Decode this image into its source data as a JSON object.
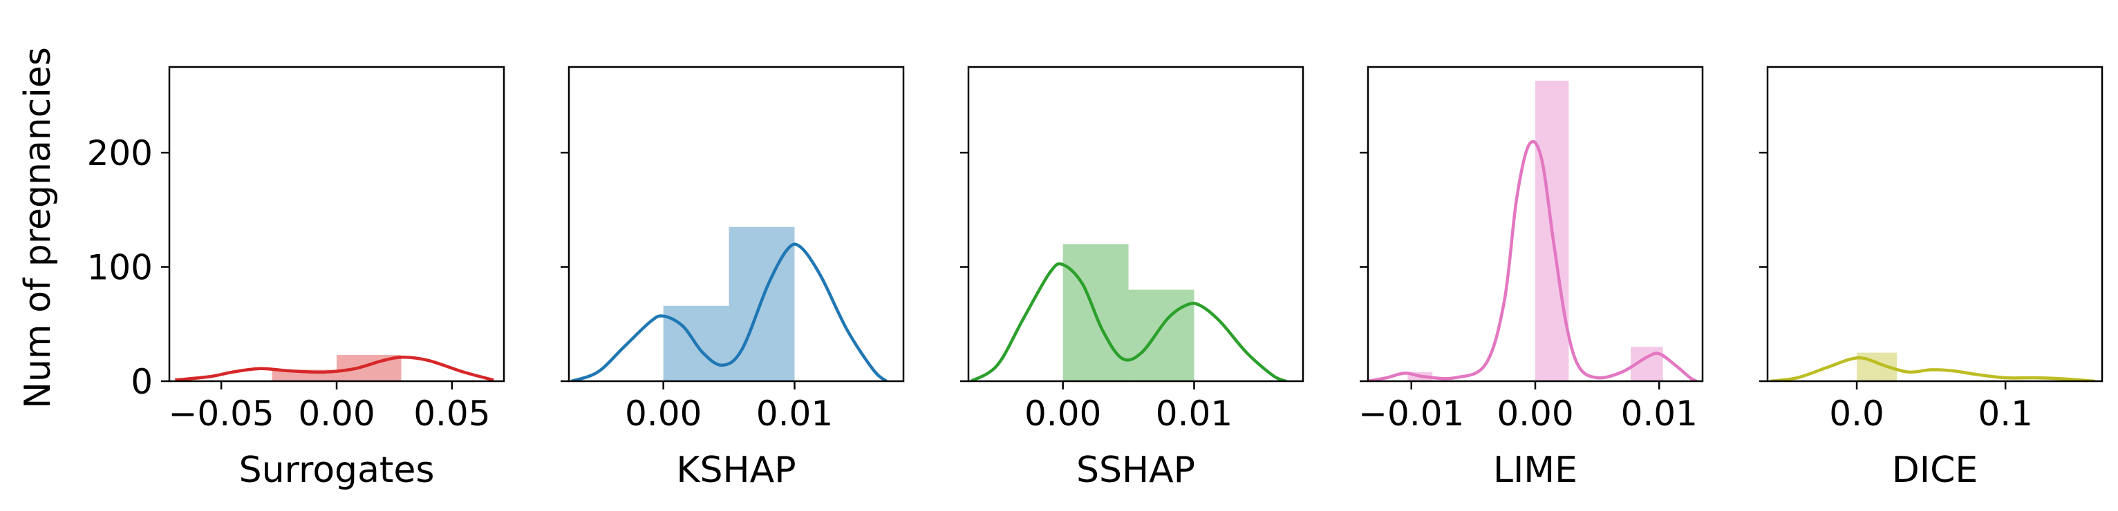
{
  "ylabel": "Num of pregnancies",
  "y_ticks": [
    0,
    100,
    200
  ],
  "y_tick_labels": [
    "0",
    "100",
    "200"
  ],
  "ylim": [
    0,
    275
  ],
  "chart_data": [
    {
      "type": "bar",
      "xlabel": "Surrogates",
      "color": "#d62728",
      "xlim": [
        -0.0725,
        0.0725
      ],
      "x_ticks": [
        -0.05,
        0.0,
        0.05
      ],
      "x_tick_labels": [
        "−0.05",
        "0.00",
        "0.05"
      ],
      "bins": [
        {
          "x0": -0.028,
          "x1": 0.0,
          "count": 10
        },
        {
          "x0": 0.0,
          "x1": 0.028,
          "count": 23
        }
      ],
      "kde": [
        {
          "x": -0.07,
          "y": 1
        },
        {
          "x": -0.055,
          "y": 4
        },
        {
          "x": -0.045,
          "y": 8
        },
        {
          "x": -0.033,
          "y": 11
        },
        {
          "x": -0.02,
          "y": 9
        },
        {
          "x": -0.005,
          "y": 8
        },
        {
          "x": 0.008,
          "y": 11
        },
        {
          "x": 0.02,
          "y": 18
        },
        {
          "x": 0.029,
          "y": 21
        },
        {
          "x": 0.04,
          "y": 18
        },
        {
          "x": 0.055,
          "y": 8
        },
        {
          "x": 0.068,
          "y": 1
        }
      ]
    },
    {
      "type": "bar",
      "xlabel": "KSHAP",
      "color": "#1f77b4",
      "xlim": [
        -0.0072,
        0.0183
      ],
      "x_ticks": [
        0.0,
        0.01
      ],
      "x_tick_labels": [
        "0.00",
        "0.01"
      ],
      "bins": [
        {
          "x0": 0.0,
          "x1": 0.005,
          "count": 66
        },
        {
          "x0": 0.005,
          "x1": 0.01,
          "count": 135
        }
      ],
      "kde": [
        {
          "x": -0.007,
          "y": 0
        },
        {
          "x": -0.005,
          "y": 8
        },
        {
          "x": -0.003,
          "y": 30
        },
        {
          "x": -0.001,
          "y": 52
        },
        {
          "x": 0.0,
          "y": 57
        },
        {
          "x": 0.0015,
          "y": 48
        },
        {
          "x": 0.003,
          "y": 25
        },
        {
          "x": 0.0045,
          "y": 14
        },
        {
          "x": 0.006,
          "y": 28
        },
        {
          "x": 0.008,
          "y": 85
        },
        {
          "x": 0.0095,
          "y": 116
        },
        {
          "x": 0.0105,
          "y": 117
        },
        {
          "x": 0.012,
          "y": 92
        },
        {
          "x": 0.014,
          "y": 45
        },
        {
          "x": 0.016,
          "y": 10
        },
        {
          "x": 0.017,
          "y": 0
        }
      ]
    },
    {
      "type": "bar",
      "xlabel": "SSHAP",
      "color": "#2ca02c",
      "xlim": [
        -0.0072,
        0.0183
      ],
      "x_ticks": [
        0.0,
        0.01
      ],
      "x_tick_labels": [
        "0.00",
        "0.01"
      ],
      "bins": [
        {
          "x0": 0.0,
          "x1": 0.005,
          "count": 120
        },
        {
          "x0": 0.005,
          "x1": 0.01,
          "count": 80
        }
      ],
      "kde": [
        {
          "x": -0.007,
          "y": 0
        },
        {
          "x": -0.005,
          "y": 14
        },
        {
          "x": -0.003,
          "y": 55
        },
        {
          "x": -0.001,
          "y": 95
        },
        {
          "x": 0.0,
          "y": 102
        },
        {
          "x": 0.0015,
          "y": 85
        },
        {
          "x": 0.003,
          "y": 45
        },
        {
          "x": 0.0045,
          "y": 20
        },
        {
          "x": 0.006,
          "y": 25
        },
        {
          "x": 0.008,
          "y": 55
        },
        {
          "x": 0.0095,
          "y": 67
        },
        {
          "x": 0.0105,
          "y": 66
        },
        {
          "x": 0.012,
          "y": 52
        },
        {
          "x": 0.014,
          "y": 25
        },
        {
          "x": 0.016,
          "y": 5
        },
        {
          "x": 0.017,
          "y": 0
        }
      ]
    },
    {
      "type": "bar",
      "xlabel": "LIME",
      "color": "#e377c2",
      "xlim": [
        -0.0135,
        0.0135
      ],
      "x_ticks": [
        -0.01,
        0.0,
        0.01
      ],
      "x_tick_labels": [
        "−0.01",
        "0.00",
        "0.01"
      ],
      "bins": [
        {
          "x0": -0.0103,
          "x1": -0.0083,
          "count": 8
        },
        {
          "x0": 0.0,
          "x1": 0.0027,
          "count": 263
        },
        {
          "x0": 0.0077,
          "x1": 0.0103,
          "count": 30
        }
      ],
      "kde": [
        {
          "x": -0.0135,
          "y": 0
        },
        {
          "x": -0.012,
          "y": 3
        },
        {
          "x": -0.0105,
          "y": 7
        },
        {
          "x": -0.009,
          "y": 4
        },
        {
          "x": -0.0065,
          "y": 3
        },
        {
          "x": -0.004,
          "y": 15
        },
        {
          "x": -0.0025,
          "y": 70
        },
        {
          "x": -0.0015,
          "y": 160
        },
        {
          "x": -0.0005,
          "y": 207
        },
        {
          "x": 0.0005,
          "y": 195
        },
        {
          "x": 0.0015,
          "y": 120
        },
        {
          "x": 0.0025,
          "y": 50
        },
        {
          "x": 0.0035,
          "y": 13
        },
        {
          "x": 0.005,
          "y": 3
        },
        {
          "x": 0.007,
          "y": 8
        },
        {
          "x": 0.009,
          "y": 21
        },
        {
          "x": 0.01,
          "y": 24
        },
        {
          "x": 0.0113,
          "y": 14
        },
        {
          "x": 0.0125,
          "y": 3
        },
        {
          "x": 0.013,
          "y": 0
        }
      ]
    },
    {
      "type": "bar",
      "xlabel": "DICE",
      "color": "#bcbd22",
      "xlim": [
        -0.06,
        0.165
      ],
      "x_ticks": [
        0.0,
        0.1
      ],
      "x_tick_labels": [
        "0.0",
        "0.1"
      ],
      "bins": [
        {
          "x0": 0.0,
          "x1": 0.027,
          "count": 25
        }
      ],
      "kde": [
        {
          "x": -0.058,
          "y": 0
        },
        {
          "x": -0.04,
          "y": 3
        },
        {
          "x": -0.02,
          "y": 12
        },
        {
          "x": -0.005,
          "y": 19
        },
        {
          "x": 0.005,
          "y": 20
        },
        {
          "x": 0.02,
          "y": 13
        },
        {
          "x": 0.035,
          "y": 8
        },
        {
          "x": 0.05,
          "y": 10
        },
        {
          "x": 0.065,
          "y": 9
        },
        {
          "x": 0.08,
          "y": 6
        },
        {
          "x": 0.1,
          "y": 3
        },
        {
          "x": 0.12,
          "y": 3
        },
        {
          "x": 0.14,
          "y": 2
        },
        {
          "x": 0.16,
          "y": 0
        }
      ]
    }
  ]
}
